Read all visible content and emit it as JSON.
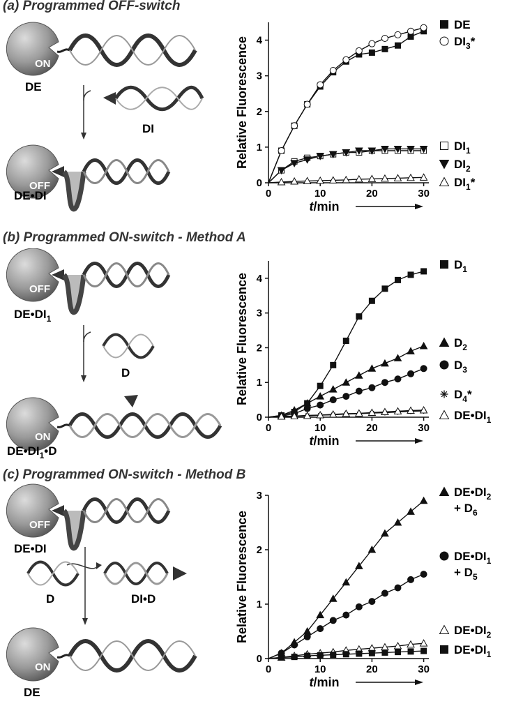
{
  "panels": [
    {
      "title": "(a)  Programmed OFF-switch",
      "scheme": {
        "top_state": "ON",
        "top_label": "DE",
        "mid_label": "DI",
        "bottom_state": "OFF",
        "bottom_label": "DE•DI"
      }
    },
    {
      "title": "(b)  Programmed ON-switch - Method A",
      "scheme": {
        "top_state": "OFF",
        "top_label": "DE•DI",
        "top_label_sub": "1",
        "mid_label": "D",
        "bottom_state": "ON",
        "bottom_label": "DE•DI",
        "bottom_label_sub": "1",
        "bottom_label_tail": "•D"
      }
    },
    {
      "title": "(c)  Programmed ON-switch - Method B",
      "scheme": {
        "top_state": "OFF",
        "top_label": "DE•DI",
        "mid_left_label": "D",
        "mid_right_label": "DI•D",
        "bottom_state": "ON",
        "bottom_label": "DE"
      }
    }
  ],
  "chart_data": [
    {
      "type": "scatter",
      "ylabel": "Relative Fluorescence",
      "xlabel": "t/min",
      "xlim": [
        0,
        31
      ],
      "ylim": [
        0,
        4.5
      ],
      "xticks": [
        "0",
        "10",
        "20",
        "30"
      ],
      "yticks": [
        "0",
        "1",
        "2",
        "3",
        "4"
      ],
      "series": [
        {
          "name": "DE",
          "marker": "filled-square",
          "x": [
            2.5,
            5,
            7.5,
            10,
            12.5,
            15,
            17.5,
            20,
            22.5,
            25,
            27.5,
            30
          ],
          "y": [
            0.9,
            1.6,
            2.2,
            2.7,
            3.1,
            3.4,
            3.6,
            3.65,
            3.75,
            3.85,
            4.1,
            4.25
          ]
        },
        {
          "name": "DI3*",
          "marker": "open-circle",
          "x": [
            2.5,
            5,
            7.5,
            10,
            12.5,
            15,
            17.5,
            20,
            22.5,
            25,
            27.5,
            30
          ],
          "y": [
            0.9,
            1.6,
            2.2,
            2.75,
            3.15,
            3.45,
            3.7,
            3.9,
            4.05,
            4.15,
            4.25,
            4.35
          ]
        },
        {
          "name": "DI1",
          "marker": "open-square",
          "x": [
            2.5,
            5,
            7.5,
            10,
            12.5,
            15,
            17.5,
            20,
            22.5,
            25,
            27.5,
            30
          ],
          "y": [
            0.35,
            0.6,
            0.7,
            0.75,
            0.8,
            0.85,
            0.85,
            0.9,
            0.9,
            0.9,
            0.9,
            0.9
          ]
        },
        {
          "name": "DI2",
          "marker": "filled-triangle-down",
          "x": [
            2.5,
            5,
            7.5,
            10,
            12.5,
            15,
            17.5,
            20,
            22.5,
            25,
            27.5,
            30
          ],
          "y": [
            0.35,
            0.55,
            0.65,
            0.75,
            0.8,
            0.85,
            0.9,
            0.9,
            0.95,
            0.95,
            0.95,
            0.95
          ]
        },
        {
          "name": "DI1*",
          "marker": "open-triangle",
          "x": [
            2.5,
            5,
            7.5,
            10,
            12.5,
            15,
            17.5,
            20,
            22.5,
            25,
            27.5,
            30
          ],
          "y": [
            0.02,
            0.04,
            0.05,
            0.06,
            0.07,
            0.08,
            0.1,
            0.11,
            0.12,
            0.13,
            0.14,
            0.15
          ]
        }
      ],
      "legend": [
        {
          "text": "DE",
          "sub": "",
          "suffix": "",
          "marker": "filled-square"
        },
        {
          "text": "DI",
          "sub": "3",
          "suffix": "*",
          "marker": "open-circle"
        },
        {
          "text": "DI",
          "sub": "1",
          "suffix": "",
          "marker": "open-square"
        },
        {
          "text": "DI",
          "sub": "2",
          "suffix": "",
          "marker": "filled-triangle-down"
        },
        {
          "text": "DI",
          "sub": "1",
          "suffix": "*",
          "marker": "open-triangle"
        }
      ]
    },
    {
      "type": "scatter",
      "ylabel": "Relative Fluorescence",
      "xlabel": "t/min",
      "xlim": [
        0,
        31
      ],
      "ylim": [
        0,
        4.5
      ],
      "xticks": [
        "0",
        "10",
        "20",
        "30"
      ],
      "yticks": [
        "0",
        "1",
        "2",
        "3",
        "4"
      ],
      "series": [
        {
          "name": "D1",
          "marker": "filled-square",
          "x": [
            2.5,
            5,
            7.5,
            10,
            12.5,
            15,
            17.5,
            20,
            22.5,
            25,
            27.5,
            30
          ],
          "y": [
            0.05,
            0.15,
            0.4,
            0.9,
            1.5,
            2.2,
            2.9,
            3.35,
            3.7,
            3.95,
            4.1,
            4.2
          ]
        },
        {
          "name": "D2",
          "marker": "filled-triangle",
          "x": [
            2.5,
            5,
            7.5,
            10,
            12.5,
            15,
            17.5,
            20,
            22.5,
            25,
            27.5,
            30
          ],
          "y": [
            0.05,
            0.2,
            0.4,
            0.6,
            0.8,
            1.0,
            1.2,
            1.4,
            1.55,
            1.7,
            1.9,
            2.05
          ]
        },
        {
          "name": "D3",
          "marker": "filled-circle",
          "x": [
            2.5,
            5,
            7.5,
            10,
            12.5,
            15,
            17.5,
            20,
            22.5,
            25,
            27.5,
            30
          ],
          "y": [
            0.03,
            0.1,
            0.25,
            0.35,
            0.5,
            0.6,
            0.75,
            0.85,
            1.0,
            1.1,
            1.25,
            1.4
          ]
        },
        {
          "name": "D4*",
          "marker": "asterisk",
          "x": [
            2.5,
            5,
            7.5,
            10,
            12.5,
            15,
            17.5,
            20,
            22.5,
            25,
            27.5,
            30
          ],
          "y": [
            0.02,
            0.03,
            0.05,
            0.06,
            0.07,
            0.09,
            0.1,
            0.12,
            0.13,
            0.15,
            0.17,
            0.18
          ]
        },
        {
          "name": "DE•DI1",
          "marker": "open-triangle",
          "x": [
            2.5,
            5,
            7.5,
            10,
            12.5,
            15,
            17.5,
            20,
            22.5,
            25,
            27.5,
            30
          ],
          "y": [
            0.02,
            0.03,
            0.04,
            0.06,
            0.08,
            0.1,
            0.11,
            0.13,
            0.15,
            0.17,
            0.19,
            0.2
          ]
        }
      ],
      "legend": [
        {
          "text": "D",
          "sub": "1",
          "suffix": "",
          "marker": "filled-square"
        },
        {
          "text": "D",
          "sub": "2",
          "suffix": "",
          "marker": "filled-triangle"
        },
        {
          "text": "D",
          "sub": "3",
          "suffix": "",
          "marker": "filled-circle"
        },
        {
          "text": "D",
          "sub": "4",
          "suffix": "*",
          "marker": "asterisk"
        },
        {
          "text": "DE•DI",
          "sub": "1",
          "suffix": "",
          "marker": "open-triangle"
        }
      ]
    },
    {
      "type": "scatter",
      "ylabel": "Relative Fluorescence",
      "xlabel": "t/min",
      "xlim": [
        0,
        31
      ],
      "ylim": [
        0,
        3
      ],
      "xticks": [
        "0",
        "10",
        "20",
        "30"
      ],
      "yticks": [
        "0",
        "1",
        "2",
        "3"
      ],
      "series": [
        {
          "name": "DE•DI2 + D6",
          "marker": "filled-triangle",
          "x": [
            2.5,
            5,
            7.5,
            10,
            12.5,
            15,
            17.5,
            20,
            22.5,
            25,
            27.5,
            30
          ],
          "y": [
            0.1,
            0.3,
            0.5,
            0.8,
            1.1,
            1.4,
            1.7,
            2.0,
            2.3,
            2.5,
            2.7,
            2.9
          ]
        },
        {
          "name": "DE•DI1 + D5",
          "marker": "filled-circle",
          "x": [
            2.5,
            5,
            7.5,
            10,
            12.5,
            15,
            17.5,
            20,
            22.5,
            25,
            27.5,
            30
          ],
          "y": [
            0.1,
            0.25,
            0.4,
            0.55,
            0.7,
            0.8,
            0.95,
            1.05,
            1.2,
            1.3,
            1.45,
            1.55
          ]
        },
        {
          "name": "DE•DI2",
          "marker": "open-triangle",
          "x": [
            2.5,
            5,
            7.5,
            10,
            12.5,
            15,
            17.5,
            20,
            22.5,
            25,
            27.5,
            30
          ],
          "y": [
            0.02,
            0.05,
            0.08,
            0.1,
            0.12,
            0.15,
            0.17,
            0.19,
            0.21,
            0.23,
            0.26,
            0.28
          ]
        },
        {
          "name": "DE•DI1",
          "marker": "filled-square",
          "x": [
            2.5,
            5,
            7.5,
            10,
            12.5,
            15,
            17.5,
            20,
            22.5,
            25,
            27.5,
            30
          ],
          "y": [
            0.02,
            0.03,
            0.05,
            0.06,
            0.07,
            0.08,
            0.09,
            0.1,
            0.11,
            0.12,
            0.13,
            0.14
          ]
        }
      ],
      "legend": [
        {
          "text": "DE•DI",
          "sub": "2",
          "suffix": "",
          "line2": "+ D",
          "line2_sub": "6",
          "marker": "filled-triangle"
        },
        {
          "text": "DE•DI",
          "sub": "1",
          "suffix": "",
          "line2": "+ D",
          "line2_sub": "5",
          "marker": "filled-circle"
        },
        {
          "text": "DE•DI",
          "sub": "2",
          "suffix": "",
          "marker": "open-triangle"
        },
        {
          "text": "DE•DI",
          "sub": "1",
          "suffix": "",
          "marker": "filled-square"
        }
      ]
    }
  ]
}
